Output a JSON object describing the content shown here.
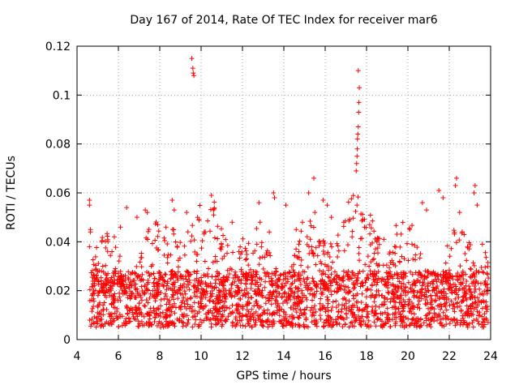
{
  "chart_data": {
    "type": "scatter",
    "title": "Day 167 of 2014, Rate Of TEC Index for receiver mar6",
    "xlabel": "GPS time / hours",
    "ylabel": "ROTI / TECUs",
    "xlim": [
      4,
      24
    ],
    "ylim": [
      0,
      0.12
    ],
    "xticks": [
      "4",
      "6",
      "8",
      "10",
      "12",
      "14",
      "16",
      "18",
      "20",
      "22",
      "24"
    ],
    "yticks": [
      "0",
      "0.02",
      "0.04",
      "0.06",
      "0.08",
      "0.1",
      "0.12"
    ],
    "grid": true,
    "marker": "+",
    "color": "#ff0000",
    "data_range_hours": [
      4.6,
      23.9
    ],
    "baseline_band": [
      0.005,
      0.028
    ],
    "series": [
      {
        "name": "ROTI",
        "points": [
          [
            4.6,
            0.057
          ],
          [
            4.6,
            0.055
          ],
          [
            4.65,
            0.045
          ],
          [
            4.65,
            0.044
          ],
          [
            4.6,
            0.038
          ],
          [
            5.2,
            0.04
          ],
          [
            5.8,
            0.042
          ],
          [
            6.1,
            0.046
          ],
          [
            6.4,
            0.054
          ],
          [
            6.9,
            0.05
          ],
          [
            7.3,
            0.053
          ],
          [
            7.4,
            0.052
          ],
          [
            7.9,
            0.047
          ],
          [
            8.3,
            0.046
          ],
          [
            8.6,
            0.057
          ],
          [
            8.7,
            0.053
          ],
          [
            9.3,
            0.052
          ],
          [
            9.55,
            0.115
          ],
          [
            9.6,
            0.111
          ],
          [
            9.62,
            0.109
          ],
          [
            9.65,
            0.108
          ],
          [
            9.9,
            0.049
          ],
          [
            10.2,
            0.044
          ],
          [
            10.5,
            0.059
          ],
          [
            10.6,
            0.053
          ],
          [
            11.5,
            0.048
          ],
          [
            12.2,
            0.033
          ],
          [
            12.8,
            0.056
          ],
          [
            12.85,
            0.048
          ],
          [
            13.3,
            0.044
          ],
          [
            13.5,
            0.06
          ],
          [
            13.55,
            0.058
          ],
          [
            14.1,
            0.055
          ],
          [
            14.6,
            0.045
          ],
          [
            14.9,
            0.048
          ],
          [
            15.2,
            0.06
          ],
          [
            15.45,
            0.066
          ],
          [
            15.5,
            0.052
          ],
          [
            15.9,
            0.057
          ],
          [
            16.1,
            0.055
          ],
          [
            16.3,
            0.05
          ],
          [
            16.9,
            0.048
          ],
          [
            17.3,
            0.042
          ],
          [
            17.5,
            0.069
          ],
          [
            17.52,
            0.072
          ],
          [
            17.54,
            0.075
          ],
          [
            17.55,
            0.078
          ],
          [
            17.56,
            0.082
          ],
          [
            17.58,
            0.084
          ],
          [
            17.6,
            0.087
          ],
          [
            17.62,
            0.093
          ],
          [
            17.63,
            0.097
          ],
          [
            17.65,
            0.103
          ],
          [
            17.6,
            0.11
          ],
          [
            17.9,
            0.046
          ],
          [
            18.5,
            0.04
          ],
          [
            19.1,
            0.035
          ],
          [
            19.6,
            0.032
          ],
          [
            20.2,
            0.039
          ],
          [
            20.7,
            0.056
          ],
          [
            20.9,
            0.053
          ],
          [
            21.5,
            0.061
          ],
          [
            21.7,
            0.058
          ],
          [
            22.3,
            0.063
          ],
          [
            22.35,
            0.066
          ],
          [
            22.5,
            0.052
          ],
          [
            23.2,
            0.06
          ],
          [
            23.25,
            0.063
          ],
          [
            23.35,
            0.055
          ],
          [
            23.6,
            0.039
          ]
        ]
      }
    ]
  }
}
